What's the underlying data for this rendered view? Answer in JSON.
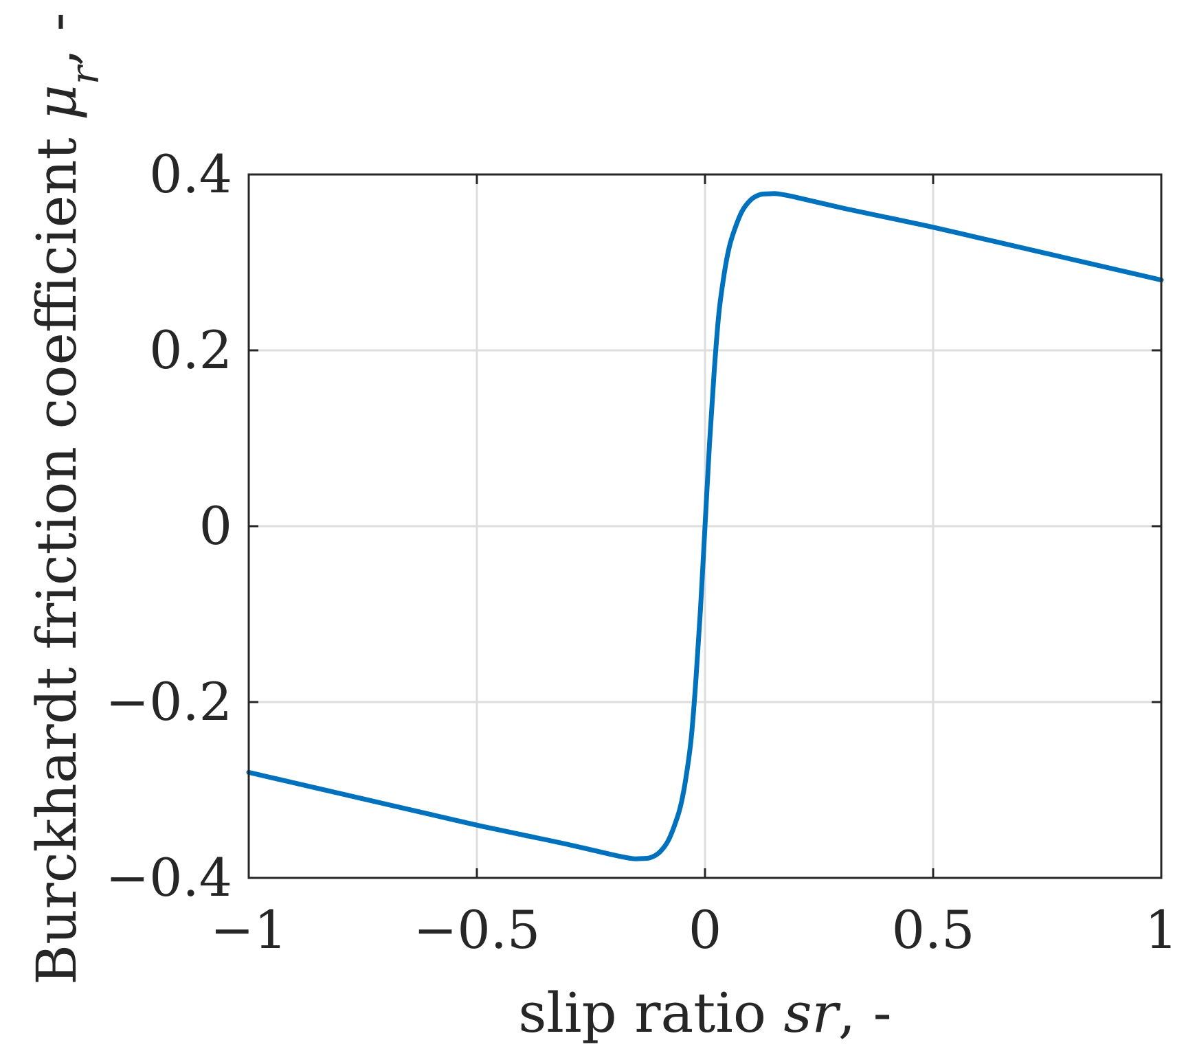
{
  "chart_data": {
    "type": "line",
    "title": "",
    "xlabel": {
      "prefix": "slip ratio ",
      "symbol": "sr",
      "suffix": ", -"
    },
    "ylabel": {
      "prefix": "Burckhardt friction coefficient ",
      "symbol": "μ",
      "subscript": "r",
      "suffix": ", -"
    },
    "xlim": [
      -1,
      1
    ],
    "ylim": [
      -0.4,
      0.4
    ],
    "xticks": [
      -1,
      -0.5,
      0,
      0.5,
      1
    ],
    "xtick_labels": [
      "−1",
      "−0.5",
      "0",
      "0.5",
      "1"
    ],
    "yticks": [
      -0.4,
      -0.2,
      0,
      0.2,
      0.4
    ],
    "ytick_labels": [
      "−0.4",
      "−0.2",
      "0",
      "0.2",
      "0.4"
    ],
    "grid": true,
    "legend": "none",
    "series": [
      {
        "color": "#0072bd",
        "x": [
          -1.0,
          -0.9,
          -0.8,
          -0.7,
          -0.6,
          -0.5,
          -0.4,
          -0.3,
          -0.2,
          -0.16,
          -0.14,
          -0.12,
          -0.1,
          -0.08,
          -0.06,
          -0.05,
          -0.04,
          -0.03,
          -0.02,
          -0.01,
          0.0,
          0.01,
          0.02,
          0.03,
          0.04,
          0.05,
          0.06,
          0.08,
          0.1,
          0.12,
          0.14,
          0.16,
          0.2,
          0.3,
          0.4,
          0.5,
          0.6,
          0.7,
          0.8,
          0.9,
          1.0
        ],
        "y": [
          -0.28,
          -0.292,
          -0.304,
          -0.316,
          -0.328,
          -0.34,
          -0.351,
          -0.362,
          -0.374,
          -0.378,
          -0.378,
          -0.377,
          -0.371,
          -0.357,
          -0.33,
          -0.31,
          -0.28,
          -0.24,
          -0.175,
          -0.095,
          0.0,
          0.095,
          0.175,
          0.24,
          0.28,
          0.31,
          0.33,
          0.357,
          0.371,
          0.377,
          0.378,
          0.378,
          0.374,
          0.362,
          0.351,
          0.34,
          0.328,
          0.316,
          0.304,
          0.292,
          0.28
        ]
      }
    ]
  }
}
